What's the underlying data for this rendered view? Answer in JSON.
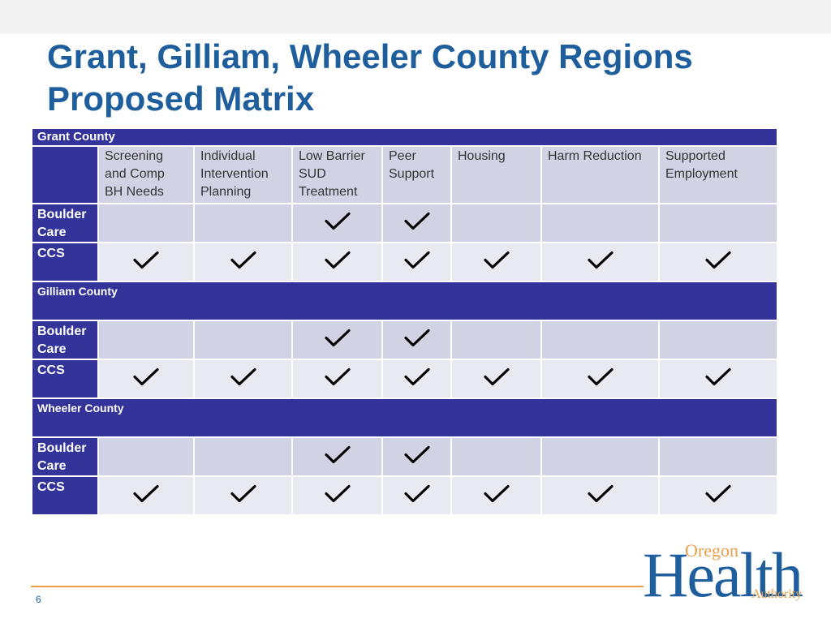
{
  "title_line1": "Grant, Gilliam, Wheeler County Regions",
  "title_line2": "Proposed Matrix",
  "columns": [
    "Screening\nand Comp\nBH Needs",
    "Individual\nIntervention\nPlanning",
    "Low Barrier\nSUD\nTreatment",
    "Peer\nSupport",
    "Housing",
    "Harm Reduction",
    "Supported\nEmployment"
  ],
  "sections": [
    {
      "name": "Grant County",
      "rows": [
        {
          "label": "Boulder\nCare",
          "checks": [
            false,
            false,
            true,
            true,
            false,
            false,
            false
          ]
        },
        {
          "label": "CCS",
          "checks": [
            true,
            true,
            true,
            true,
            true,
            true,
            true
          ]
        }
      ]
    },
    {
      "name": "Gilliam County",
      "rows": [
        {
          "label": "Boulder\nCare",
          "checks": [
            false,
            false,
            true,
            true,
            false,
            false,
            false
          ]
        },
        {
          "label": "CCS",
          "checks": [
            true,
            true,
            true,
            true,
            true,
            true,
            true
          ]
        }
      ]
    },
    {
      "name": "Wheeler County",
      "rows": [
        {
          "label": "Boulder\nCare",
          "checks": [
            false,
            false,
            true,
            true,
            false,
            false,
            false
          ]
        },
        {
          "label": "CCS",
          "checks": [
            true,
            true,
            true,
            true,
            true,
            true,
            true
          ]
        }
      ]
    }
  ],
  "page_number": "6",
  "logo": {
    "oregon": "Oregon",
    "health": "Health",
    "authority": "Authority"
  },
  "colors": {
    "title": "#1f5e9c",
    "banner": "#333399",
    "cell": "#d2d2e5",
    "cell_alt": "#e9e9f2",
    "rule": "#e8a04a"
  }
}
